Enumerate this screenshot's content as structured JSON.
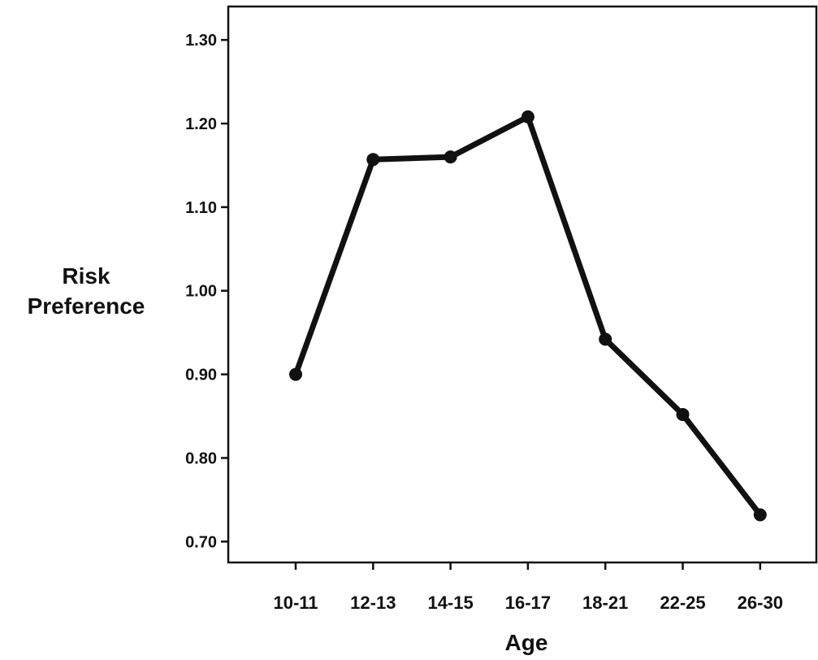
{
  "chart_data": {
    "type": "line",
    "title": "",
    "xlabel": "Age",
    "ylabel_lines": [
      "Risk",
      "Preference"
    ],
    "categories": [
      "10-11",
      "12-13",
      "14-15",
      "16-17",
      "18-21",
      "22-25",
      "26-30"
    ],
    "series": [
      {
        "values": [
          0.9,
          1.157,
          1.16,
          1.208,
          0.942,
          0.852,
          0.732
        ]
      }
    ],
    "ylim": [
      0.675,
      1.34
    ],
    "yticks": [
      "0.70",
      "0.80",
      "0.90",
      "1.00",
      "1.10",
      "1.20",
      "1.30"
    ],
    "grid": false,
    "legend": "none",
    "line_color": "#111111"
  }
}
